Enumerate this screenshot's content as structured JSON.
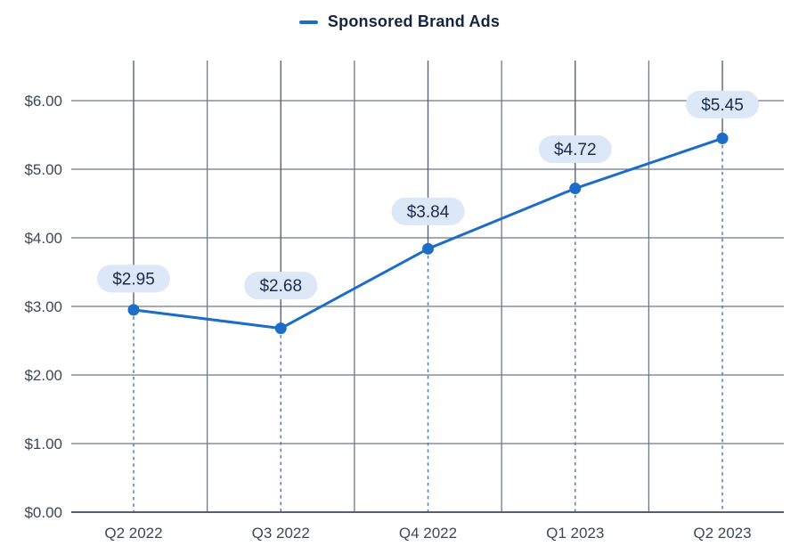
{
  "legend": {
    "label": "Sponsored Brand Ads"
  },
  "chart_data": {
    "type": "line",
    "title": "",
    "xlabel": "",
    "ylabel": "",
    "categories": [
      "Q2 2022",
      "Q3 2022",
      "Q4 2022",
      "Q1 2023",
      "Q2 2023"
    ],
    "series": [
      {
        "name": "Sponsored Brand Ads",
        "values": [
          2.95,
          2.68,
          3.84,
          4.72,
          5.45
        ],
        "point_labels": [
          "$2.95",
          "$2.68",
          "$3.84",
          "$4.72",
          "$5.45"
        ]
      }
    ],
    "y_ticks": [
      {
        "value": 0,
        "label": "$0.00"
      },
      {
        "value": 1,
        "label": "$1.00"
      },
      {
        "value": 2,
        "label": "$2.00"
      },
      {
        "value": 3,
        "label": "$3.00"
      },
      {
        "value": 4,
        "label": "$4.00"
      },
      {
        "value": 5,
        "label": "$5.00"
      },
      {
        "value": 6,
        "label": "$6.00"
      }
    ],
    "ylim": [
      0,
      6.6
    ],
    "grid": "on",
    "legend_position": "top-center",
    "label_offsets": [
      -35,
      -48,
      -42,
      -44,
      -38
    ],
    "colors": {
      "line": "#1b6dc9",
      "point": "#1b6dc9",
      "pill_bg": "#dce8f8",
      "pill_text": "#1d2c4c",
      "h_grid": "#6e7987",
      "v_grid": "#5a6470",
      "baseline": "#55606c",
      "drop_line": "#4a80ba",
      "axis_text": "#3d4755"
    }
  }
}
